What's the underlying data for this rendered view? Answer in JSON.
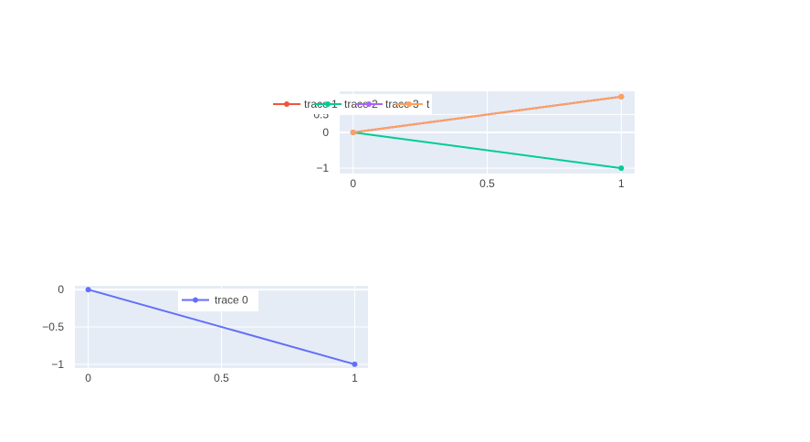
{
  "chart_data": [
    {
      "type": "line",
      "legend_position": "inside-top-center",
      "grid": true,
      "xlim": [
        -0.05,
        1.05
      ],
      "ylim": [
        -1.15,
        1.15
      ],
      "x_ticks": [
        "0",
        "0.5",
        "1"
      ],
      "y_ticks": [
        "−1",
        "0",
        "0.5"
      ],
      "series": [
        {
          "name": "trace 1",
          "color": "#EF553B",
          "x": [
            0,
            1
          ],
          "y": [
            0,
            1
          ]
        },
        {
          "name": "trace 2",
          "color": "#00CC96",
          "x": [
            0,
            1
          ],
          "y": [
            0,
            -1
          ]
        },
        {
          "name": "trace 3",
          "color": "#AB63FA",
          "x": [
            0,
            1
          ],
          "y": [
            0,
            1
          ]
        },
        {
          "name": "t",
          "color": "#FFA15A",
          "x": [
            0,
            1
          ],
          "y": [
            0,
            1
          ]
        }
      ]
    },
    {
      "type": "line",
      "legend_position": "inside-top-center",
      "grid": true,
      "xlim": [
        -0.05,
        1.05
      ],
      "ylim": [
        -1.05,
        0.05
      ],
      "x_ticks": [
        "0",
        "0.5",
        "1"
      ],
      "y_ticks": [
        "0",
        "−0.5",
        "−1"
      ],
      "series": [
        {
          "name": "trace 0",
          "color": "#636EFA",
          "x": [
            0,
            1
          ],
          "y": [
            0,
            -1
          ]
        }
      ]
    }
  ]
}
